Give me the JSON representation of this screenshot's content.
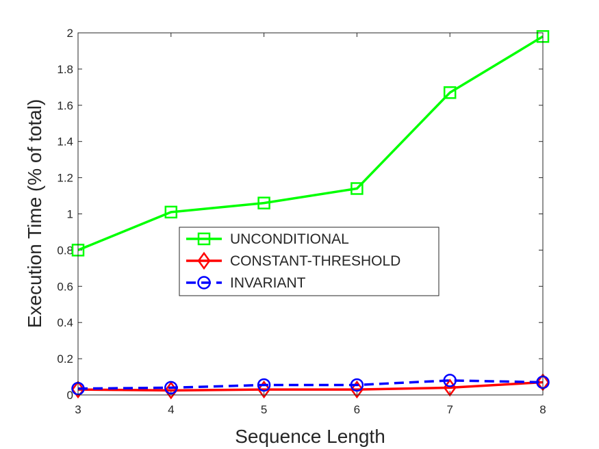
{
  "chart_data": {
    "type": "line",
    "xlabel": "Sequence Length",
    "ylabel": "Execution Time (% of total)",
    "x": [
      3,
      4,
      5,
      6,
      7,
      8
    ],
    "xlim": [
      3,
      8
    ],
    "ylim": [
      0,
      2
    ],
    "xticks": [
      "3",
      "4",
      "5",
      "6",
      "7",
      "8"
    ],
    "yticks": [
      "0",
      "0.2",
      "0.4",
      "0.6",
      "0.8",
      "1",
      "1.2",
      "1.4",
      "1.6",
      "1.8",
      "2"
    ],
    "grid": false,
    "legend_position": "center",
    "series": [
      {
        "name": "UNCONDITIONAL",
        "values": [
          0.8,
          1.01,
          1.06,
          1.14,
          1.67,
          1.98
        ],
        "color": "#00ff00",
        "marker": "square",
        "dash": "solid"
      },
      {
        "name": "CONSTANT-THRESHOLD",
        "values": [
          0.03,
          0.025,
          0.03,
          0.03,
          0.04,
          0.07
        ],
        "color": "#ff0000",
        "marker": "diamond",
        "dash": "solid"
      },
      {
        "name": "INVARIANT",
        "values": [
          0.035,
          0.04,
          0.055,
          0.055,
          0.08,
          0.07
        ],
        "color": "#0000ff",
        "marker": "circle",
        "dash": "dashed"
      }
    ]
  }
}
